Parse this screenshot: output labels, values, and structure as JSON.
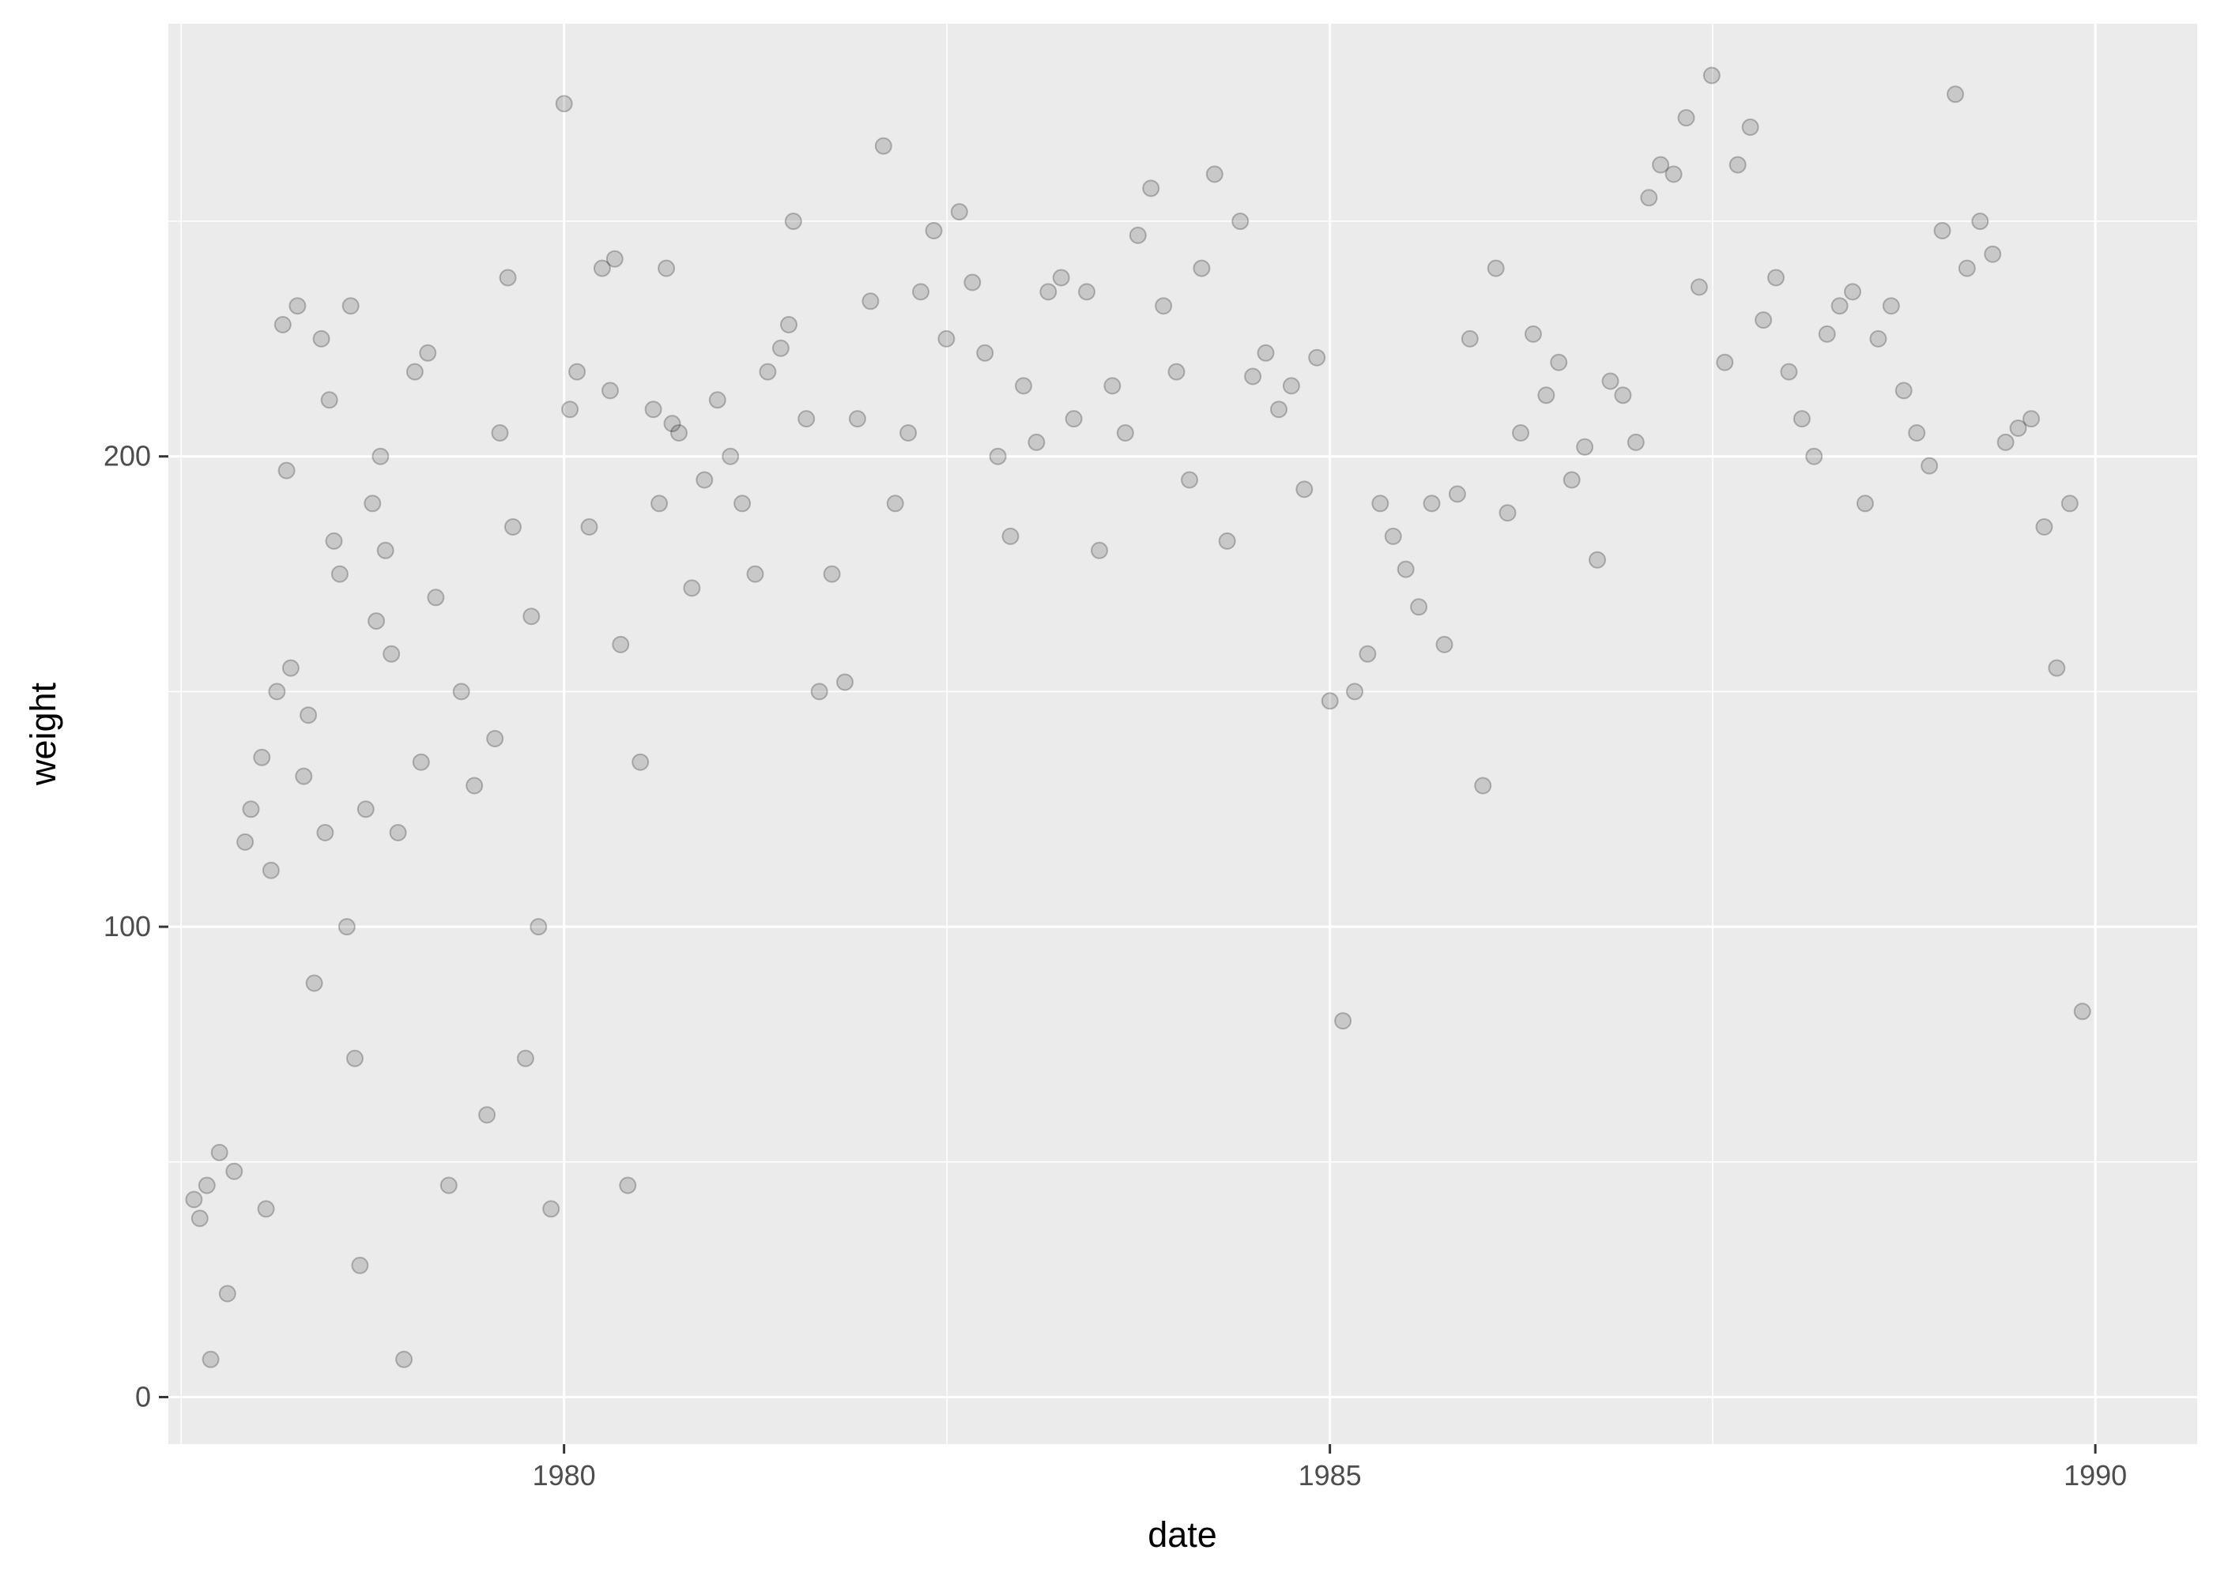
{
  "chart_data": {
    "type": "scatter",
    "title": "",
    "xlabel": "date",
    "ylabel": "weight",
    "x_scale": "date",
    "x_range": [
      "1977-06-01",
      "1990-09-01"
    ],
    "ylim": [
      -10,
      292
    ],
    "x_ticks": [
      {
        "value": "1980-01-01",
        "label": "1980"
      },
      {
        "value": "1985-01-01",
        "label": "1985"
      },
      {
        "value": "1990-01-01",
        "label": "1990"
      }
    ],
    "y_ticks": [
      {
        "value": 0,
        "label": "0"
      },
      {
        "value": 100,
        "label": "100"
      },
      {
        "value": 200,
        "label": "200"
      }
    ],
    "grid": true,
    "legend": "none",
    "point_color": "#000000",
    "point_alpha": 0.15,
    "panel_background": "#ebebeb",
    "gridline_color": "#ffffff",
    "points": [
      [
        "1977-08-01",
        42
      ],
      [
        "1977-08-15",
        38
      ],
      [
        "1977-09-01",
        45
      ],
      [
        "1977-09-10",
        8
      ],
      [
        "1977-10-01",
        52
      ],
      [
        "1977-10-20",
        22
      ],
      [
        "1977-11-05",
        48
      ],
      [
        "1977-12-01",
        118
      ],
      [
        "1977-12-15",
        125
      ],
      [
        "1978-01-10",
        136
      ],
      [
        "1978-01-20",
        40
      ],
      [
        "1978-02-01",
        112
      ],
      [
        "1978-02-15",
        150
      ],
      [
        "1978-03-01",
        228
      ],
      [
        "1978-03-10",
        197
      ],
      [
        "1978-03-20",
        155
      ],
      [
        "1978-04-05",
        232
      ],
      [
        "1978-04-20",
        132
      ],
      [
        "1978-05-01",
        145
      ],
      [
        "1978-05-15",
        88
      ],
      [
        "1978-06-01",
        225
      ],
      [
        "1978-06-10",
        120
      ],
      [
        "1978-06-20",
        212
      ],
      [
        "1978-07-01",
        182
      ],
      [
        "1978-07-15",
        175
      ],
      [
        "1978-08-01",
        100
      ],
      [
        "1978-08-10",
        232
      ],
      [
        "1978-08-20",
        72
      ],
      [
        "1978-09-01",
        28
      ],
      [
        "1978-09-15",
        125
      ],
      [
        "1978-10-01",
        190
      ],
      [
        "1978-10-10",
        165
      ],
      [
        "1978-10-20",
        200
      ],
      [
        "1978-11-01",
        180
      ],
      [
        "1978-11-15",
        158
      ],
      [
        "1978-12-01",
        120
      ],
      [
        "1978-12-15",
        8
      ],
      [
        "1979-01-10",
        218
      ],
      [
        "1979-01-25",
        135
      ],
      [
        "1979-02-10",
        222
      ],
      [
        "1979-03-01",
        170
      ],
      [
        "1979-04-01",
        45
      ],
      [
        "1979-05-01",
        150
      ],
      [
        "1979-06-01",
        130
      ],
      [
        "1979-07-01",
        60
      ],
      [
        "1979-07-20",
        140
      ],
      [
        "1979-08-01",
        205
      ],
      [
        "1979-08-20",
        238
      ],
      [
        "1979-09-01",
        185
      ],
      [
        "1979-10-01",
        72
      ],
      [
        "1979-10-15",
        166
      ],
      [
        "1979-11-01",
        100
      ],
      [
        "1979-12-01",
        40
      ],
      [
        "1980-01-01",
        275
      ],
      [
        "1980-01-15",
        210
      ],
      [
        "1980-02-01",
        218
      ],
      [
        "1980-03-01",
        185
      ],
      [
        "1980-04-01",
        240
      ],
      [
        "1980-04-20",
        214
      ],
      [
        "1980-05-01",
        242
      ],
      [
        "1980-05-15",
        160
      ],
      [
        "1980-06-01",
        45
      ],
      [
        "1980-07-01",
        135
      ],
      [
        "1980-08-01",
        210
      ],
      [
        "1980-08-15",
        190
      ],
      [
        "1980-09-01",
        240
      ],
      [
        "1980-09-15",
        207
      ],
      [
        "1980-10-01",
        205
      ],
      [
        "1980-11-01",
        172
      ],
      [
        "1980-12-01",
        195
      ],
      [
        "1981-01-01",
        212
      ],
      [
        "1981-02-01",
        200
      ],
      [
        "1981-03-01",
        190
      ],
      [
        "1981-04-01",
        175
      ],
      [
        "1981-05-01",
        218
      ],
      [
        "1981-06-01",
        223
      ],
      [
        "1981-06-20",
        228
      ],
      [
        "1981-07-01",
        250
      ],
      [
        "1981-08-01",
        208
      ],
      [
        "1981-09-01",
        150
      ],
      [
        "1981-10-01",
        175
      ],
      [
        "1981-11-01",
        152
      ],
      [
        "1981-12-01",
        208
      ],
      [
        "1982-01-01",
        233
      ],
      [
        "1982-02-01",
        266
      ],
      [
        "1982-03-01",
        190
      ],
      [
        "1982-04-01",
        205
      ],
      [
        "1982-05-01",
        235
      ],
      [
        "1982-06-01",
        248
      ],
      [
        "1982-07-01",
        225
      ],
      [
        "1982-08-01",
        252
      ],
      [
        "1982-09-01",
        237
      ],
      [
        "1982-10-01",
        222
      ],
      [
        "1982-11-01",
        200
      ],
      [
        "1982-12-01",
        183
      ],
      [
        "1983-01-01",
        215
      ],
      [
        "1983-02-01",
        203
      ],
      [
        "1983-03-01",
        235
      ],
      [
        "1983-04-01",
        238
      ],
      [
        "1983-05-01",
        208
      ],
      [
        "1983-06-01",
        235
      ],
      [
        "1983-07-01",
        180
      ],
      [
        "1983-08-01",
        215
      ],
      [
        "1983-09-01",
        205
      ],
      [
        "1983-10-01",
        247
      ],
      [
        "1983-11-01",
        257
      ],
      [
        "1983-12-01",
        232
      ],
      [
        "1984-01-01",
        218
      ],
      [
        "1984-02-01",
        195
      ],
      [
        "1984-03-01",
        240
      ],
      [
        "1984-04-01",
        260
      ],
      [
        "1984-05-01",
        182
      ],
      [
        "1984-06-01",
        250
      ],
      [
        "1984-07-01",
        217
      ],
      [
        "1984-08-01",
        222
      ],
      [
        "1984-09-01",
        210
      ],
      [
        "1984-10-01",
        215
      ],
      [
        "1984-11-01",
        193
      ],
      [
        "1984-12-01",
        221
      ],
      [
        "1985-01-01",
        148
      ],
      [
        "1985-02-01",
        80
      ],
      [
        "1985-03-01",
        150
      ],
      [
        "1985-04-01",
        158
      ],
      [
        "1985-05-01",
        190
      ],
      [
        "1985-06-01",
        183
      ],
      [
        "1985-07-01",
        176
      ],
      [
        "1985-08-01",
        168
      ],
      [
        "1985-09-01",
        190
      ],
      [
        "1985-10-01",
        160
      ],
      [
        "1985-11-01",
        192
      ],
      [
        "1985-12-01",
        225
      ],
      [
        "1986-01-01",
        130
      ],
      [
        "1986-02-01",
        240
      ],
      [
        "1986-03-01",
        188
      ],
      [
        "1986-04-01",
        205
      ],
      [
        "1986-05-01",
        226
      ],
      [
        "1986-06-01",
        213
      ],
      [
        "1986-07-01",
        220
      ],
      [
        "1986-08-01",
        195
      ],
      [
        "1986-09-01",
        202
      ],
      [
        "1986-10-01",
        178
      ],
      [
        "1986-11-01",
        216
      ],
      [
        "1986-12-01",
        213
      ],
      [
        "1987-01-01",
        203
      ],
      [
        "1987-02-01",
        255
      ],
      [
        "1987-03-01",
        262
      ],
      [
        "1987-04-01",
        260
      ],
      [
        "1987-05-01",
        272
      ],
      [
        "1987-06-01",
        236
      ],
      [
        "1987-07-01",
        281
      ],
      [
        "1987-08-01",
        220
      ],
      [
        "1987-09-01",
        262
      ],
      [
        "1987-10-01",
        270
      ],
      [
        "1987-11-01",
        229
      ],
      [
        "1987-12-01",
        238
      ],
      [
        "1988-01-01",
        218
      ],
      [
        "1988-02-01",
        208
      ],
      [
        "1988-03-01",
        200
      ],
      [
        "1988-04-01",
        226
      ],
      [
        "1988-05-01",
        232
      ],
      [
        "1988-06-01",
        235
      ],
      [
        "1988-07-01",
        190
      ],
      [
        "1988-08-01",
        225
      ],
      [
        "1988-09-01",
        232
      ],
      [
        "1988-10-01",
        214
      ],
      [
        "1988-11-01",
        205
      ],
      [
        "1988-12-01",
        198
      ],
      [
        "1989-01-01",
        248
      ],
      [
        "1989-02-01",
        277
      ],
      [
        "1989-03-01",
        240
      ],
      [
        "1989-04-01",
        250
      ],
      [
        "1989-05-01",
        243
      ],
      [
        "1989-06-01",
        203
      ],
      [
        "1989-07-01",
        206
      ],
      [
        "1989-08-01",
        208
      ],
      [
        "1989-09-01",
        185
      ],
      [
        "1989-10-01",
        155
      ],
      [
        "1989-11-01",
        190
      ],
      [
        "1989-12-01",
        82
      ]
    ]
  }
}
